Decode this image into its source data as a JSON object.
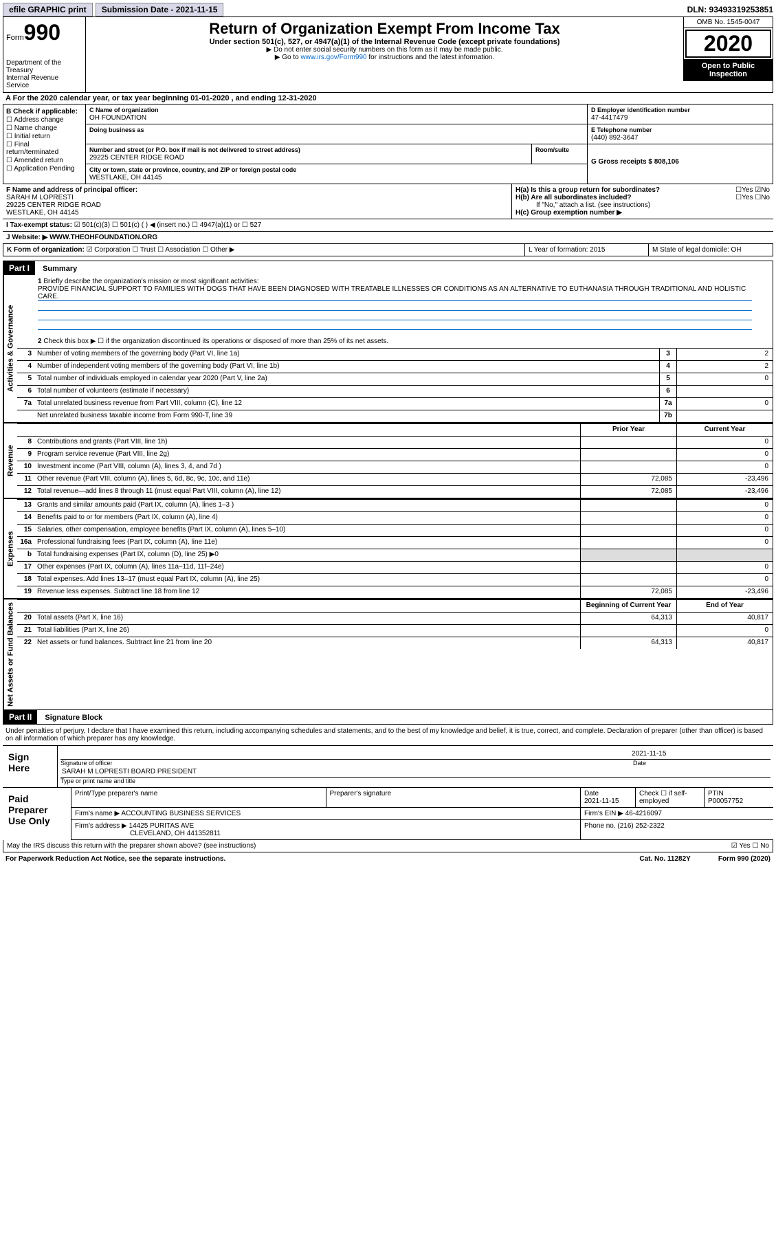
{
  "top": {
    "efile": "efile GRAPHIC print",
    "sub_label": "Submission Date - 2021-11-15",
    "dln": "DLN: 93493319253851"
  },
  "header": {
    "form_prefix": "Form",
    "form_num": "990",
    "dept": "Department of the Treasury\nInternal Revenue Service",
    "title": "Return of Organization Exempt From Income Tax",
    "subtitle": "Under section 501(c), 527, or 4947(a)(1) of the Internal Revenue Code (except private foundations)",
    "note1": "▶ Do not enter social security numbers on this form as it may be made public.",
    "note2_pre": "▶ Go to ",
    "note2_link": "www.irs.gov/Form990",
    "note2_post": " for instructions and the latest information.",
    "omb": "OMB No. 1545-0047",
    "year": "2020",
    "open": "Open to Public Inspection"
  },
  "period": "A For the 2020 calendar year, or tax year beginning 01-01-2020  , and ending 12-31-2020",
  "colB": {
    "hdr": "B Check if applicable:",
    "items": [
      "Address change",
      "Name change",
      "Initial return",
      "Final return/terminated",
      "Amended return",
      "Application Pending"
    ]
  },
  "org": {
    "c_label": "C Name of organization",
    "name": "OH FOUNDATION",
    "dba_label": "Doing business as",
    "addr_label": "Number and street (or P.O. box if mail is not delivered to street address)",
    "room_label": "Room/suite",
    "addr": "29225 CENTER RIDGE ROAD",
    "city_label": "City or town, state or province, country, and ZIP or foreign postal code",
    "city": "WESTLAKE, OH  44145"
  },
  "right": {
    "d_label": "D Employer identification number",
    "ein": "47-4417479",
    "e_label": "E Telephone number",
    "phone": "(440) 892-3647",
    "g_label": "G Gross receipts $ 808,106"
  },
  "fg": {
    "f_label": "F Name and address of principal officer:",
    "f_name": "SARAH M LOPRESTI",
    "f_addr1": "29225 CENTER RIDGE ROAD",
    "f_addr2": "WESTLAKE, OH  44145",
    "ha": "H(a)  Is this a group return for subordinates?",
    "hb": "H(b)  Are all subordinates included?",
    "hb_note": "If \"No,\" attach a list. (see instructions)",
    "hc": "H(c)  Group exemption number ▶",
    "yes": "Yes",
    "no": "No"
  },
  "i": "I  Tax-exempt status:",
  "i_opts": [
    "501(c)(3)",
    "501(c) (  ) ◀ (insert no.)",
    "4947(a)(1) or",
    "527"
  ],
  "j": "J  Website: ▶  WWW.THEOHFOUNDATION.ORG",
  "k": "K Form of organization:",
  "k_opts": [
    "Corporation",
    "Trust",
    "Association",
    "Other ▶"
  ],
  "l": "L Year of formation: 2015",
  "m": "M State of legal domicile: OH",
  "part1": {
    "hdr": "Part I",
    "title": "Summary",
    "q1": "Briefly describe the organization's mission or most significant activities:",
    "mission": "PROVIDE FINANCIAL SUPPORT TO FAMILIES WITH DOGS THAT HAVE BEEN DIAGNOSED WITH TREATABLE ILLNESSES OR CONDITIONS AS AN ALTERNATIVE TO EUTHANASIA THROUGH TRADITIONAL AND HOLISTIC CARE.",
    "q2": "Check this box ▶ ☐ if the organization discontinued its operations or disposed of more than 25% of its net assets.",
    "sections": [
      {
        "label": "Activities & Governance",
        "rows": [
          {
            "n": "3",
            "t": "Number of voting members of the governing body (Part VI, line 1a)",
            "box": "3",
            "v2": "2"
          },
          {
            "n": "4",
            "t": "Number of independent voting members of the governing body (Part VI, line 1b)",
            "box": "4",
            "v2": "2"
          },
          {
            "n": "5",
            "t": "Total number of individuals employed in calendar year 2020 (Part V, line 2a)",
            "box": "5",
            "v2": "0"
          },
          {
            "n": "6",
            "t": "Total number of volunteers (estimate if necessary)",
            "box": "6",
            "v2": ""
          },
          {
            "n": "7a",
            "t": "Total unrelated business revenue from Part VIII, column (C), line 12",
            "box": "7a",
            "v2": "0"
          },
          {
            "n": "",
            "t": "Net unrelated business taxable income from Form 990-T, line 39",
            "box": "7b",
            "v2": ""
          }
        ]
      },
      {
        "label": "Revenue",
        "hdr": true,
        "rows": [
          {
            "n": "8",
            "t": "Contributions and grants (Part VIII, line 1h)",
            "v1": "",
            "v2": "0"
          },
          {
            "n": "9",
            "t": "Program service revenue (Part VIII, line 2g)",
            "v1": "",
            "v2": "0"
          },
          {
            "n": "10",
            "t": "Investment income (Part VIII, column (A), lines 3, 4, and 7d )",
            "v1": "",
            "v2": "0"
          },
          {
            "n": "11",
            "t": "Other revenue (Part VIII, column (A), lines 5, 6d, 8c, 9c, 10c, and 11e)",
            "v1": "72,085",
            "v2": "-23,496"
          },
          {
            "n": "12",
            "t": "Total revenue—add lines 8 through 11 (must equal Part VIII, column (A), line 12)",
            "v1": "72,085",
            "v2": "-23,496"
          }
        ]
      },
      {
        "label": "Expenses",
        "rows": [
          {
            "n": "13",
            "t": "Grants and similar amounts paid (Part IX, column (A), lines 1–3 )",
            "v1": "",
            "v2": "0"
          },
          {
            "n": "14",
            "t": "Benefits paid to or for members (Part IX, column (A), line 4)",
            "v1": "",
            "v2": "0"
          },
          {
            "n": "15",
            "t": "Salaries, other compensation, employee benefits (Part IX, column (A), lines 5–10)",
            "v1": "",
            "v2": "0"
          },
          {
            "n": "16a",
            "t": "Professional fundraising fees (Part IX, column (A), line 11e)",
            "v1": "",
            "v2": "0"
          },
          {
            "n": "b",
            "t": "Total fundraising expenses (Part IX, column (D), line 25) ▶0",
            "shaded": true
          },
          {
            "n": "17",
            "t": "Other expenses (Part IX, column (A), lines 11a–11d, 11f–24e)",
            "v1": "",
            "v2": "0"
          },
          {
            "n": "18",
            "t": "Total expenses. Add lines 13–17 (must equal Part IX, column (A), line 25)",
            "v1": "",
            "v2": "0"
          },
          {
            "n": "19",
            "t": "Revenue less expenses. Subtract line 18 from line 12",
            "v1": "72,085",
            "v2": "-23,496"
          }
        ]
      },
      {
        "label": "Net Assets or Fund Balances",
        "hdr2": true,
        "rows": [
          {
            "n": "20",
            "t": "Total assets (Part X, line 16)",
            "v1": "64,313",
            "v2": "40,817"
          },
          {
            "n": "21",
            "t": "Total liabilities (Part X, line 26)",
            "v1": "",
            "v2": "0"
          },
          {
            "n": "22",
            "t": "Net assets or fund balances. Subtract line 21 from line 20",
            "v1": "64,313",
            "v2": "40,817"
          }
        ]
      }
    ],
    "col_hdr1": "Prior Year",
    "col_hdr2": "Current Year",
    "col_hdr3": "Beginning of Current Year",
    "col_hdr4": "End of Year"
  },
  "part2": {
    "hdr": "Part II",
    "title": "Signature Block",
    "decl": "Under penalties of perjury, I declare that I have examined this return, including accompanying schedules and statements, and to the best of my knowledge and belief, it is true, correct, and complete. Declaration of preparer (other than officer) is based on all information of which preparer has any knowledge.",
    "sign_here": "Sign Here",
    "sig_officer": "Signature of officer",
    "sig_date": "2021-11-15",
    "date_label": "Date",
    "officer_name": "SARAH M LOPRESTI  BOARD PRESIDENT",
    "type_name": "Type or print name and title",
    "paid_label": "Paid Preparer Use Only",
    "prep_name_label": "Print/Type preparer's name",
    "prep_sig_label": "Preparer's signature",
    "prep_date": "2021-11-15",
    "check_self": "Check ☐ if self-employed",
    "ptin_label": "PTIN",
    "ptin": "P00057752",
    "firm_name_label": "Firm's name   ▶",
    "firm_name": "ACCOUNTING BUSINESS SERVICES",
    "firm_ein_label": "Firm's EIN ▶",
    "firm_ein": "46-4216097",
    "firm_addr_label": "Firm's address ▶",
    "firm_addr1": "14425 PURITAS AVE",
    "firm_addr2": "CLEVELAND, OH  441352811",
    "phone_label": "Phone no.",
    "phone": "(216) 252-2322",
    "discuss": "May the IRS discuss this return with the preparer shown above? (see instructions)"
  },
  "footer": {
    "left": "For Paperwork Reduction Act Notice, see the separate instructions.",
    "mid": "Cat. No. 11282Y",
    "right": "Form 990 (2020)"
  }
}
